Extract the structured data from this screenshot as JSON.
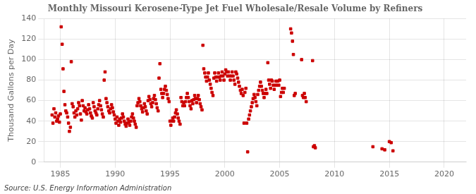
{
  "chart_data": {
    "type": "scatter",
    "title": "Monthly Missouri Kerosene-Type Jet Fuel Wholesale/Resale Volume by Refiners",
    "ylabel": "Thousand Gallons per Day",
    "annotations": [
      "Source: U.S. Energy Information Administration"
    ],
    "color": "#cc0000",
    "marker": "square",
    "grid": true,
    "xlim": [
      1983.5,
      2022
    ],
    "ylim": [
      0,
      140
    ],
    "xticks": [
      1985,
      1990,
      1995,
      2000,
      2005,
      2010,
      2015,
      2020
    ],
    "yticks": [
      0,
      20,
      40,
      60,
      80,
      100,
      120,
      140
    ],
    "x": [
      1984.25,
      1984.33,
      1984.42,
      1984.5,
      1984.58,
      1984.67,
      1984.75,
      1984.83,
      1984.92,
      1985.0,
      1985.08,
      1985.17,
      1985.25,
      1985.33,
      1985.42,
      1985.5,
      1985.58,
      1985.67,
      1985.75,
      1985.83,
      1985.92,
      1986.0,
      1986.08,
      1986.17,
      1986.25,
      1986.33,
      1986.42,
      1986.5,
      1986.58,
      1986.67,
      1986.75,
      1986.83,
      1986.92,
      1987.0,
      1987.08,
      1987.17,
      1987.25,
      1987.33,
      1987.42,
      1987.5,
      1987.58,
      1987.67,
      1987.75,
      1987.83,
      1987.92,
      1988.0,
      1988.08,
      1988.17,
      1988.25,
      1988.33,
      1988.42,
      1988.5,
      1988.58,
      1988.67,
      1988.75,
      1988.83,
      1988.92,
      1989.0,
      1989.08,
      1989.17,
      1989.25,
      1989.33,
      1989.42,
      1989.5,
      1989.58,
      1989.67,
      1989.75,
      1989.83,
      1989.92,
      1990.0,
      1990.08,
      1990.17,
      1990.25,
      1990.33,
      1990.42,
      1990.5,
      1990.58,
      1990.67,
      1990.75,
      1990.83,
      1990.92,
      1991.0,
      1991.08,
      1991.17,
      1991.25,
      1991.33,
      1991.42,
      1991.5,
      1991.58,
      1991.67,
      1991.75,
      1991.83,
      1991.92,
      1992.0,
      1992.08,
      1992.17,
      1992.25,
      1992.33,
      1992.42,
      1992.5,
      1992.58,
      1992.67,
      1992.75,
      1992.83,
      1992.92,
      1993.0,
      1993.08,
      1993.17,
      1993.25,
      1993.33,
      1993.42,
      1993.5,
      1993.58,
      1993.67,
      1993.75,
      1993.83,
      1993.92,
      1994.0,
      1994.08,
      1994.17,
      1994.25,
      1994.33,
      1994.42,
      1994.5,
      1994.58,
      1994.67,
      1994.75,
      1994.83,
      1994.92,
      1995.0,
      1995.08,
      1995.17,
      1995.25,
      1995.33,
      1995.42,
      1995.5,
      1995.58,
      1995.67,
      1995.75,
      1995.83,
      1995.92,
      1996.0,
      1996.08,
      1996.17,
      1996.25,
      1996.33,
      1996.42,
      1996.5,
      1996.58,
      1996.67,
      1996.75,
      1996.83,
      1996.92,
      1997.0,
      1997.08,
      1997.17,
      1997.25,
      1997.33,
      1997.42,
      1997.5,
      1997.58,
      1997.67,
      1997.75,
      1997.83,
      1997.92,
      1998.0,
      1998.08,
      1998.17,
      1998.25,
      1998.33,
      1998.42,
      1998.5,
      1998.58,
      1998.67,
      1998.75,
      1998.83,
      1998.92,
      1999.0,
      1999.08,
      1999.17,
      1999.25,
      1999.33,
      1999.42,
      1999.5,
      1999.58,
      1999.67,
      1999.75,
      1999.83,
      1999.92,
      2000.0,
      2000.08,
      2000.17,
      2000.25,
      2000.33,
      2000.42,
      2000.5,
      2000.58,
      2000.67,
      2000.75,
      2000.83,
      2000.92,
      2001.0,
      2001.08,
      2001.17,
      2001.25,
      2001.33,
      2001.42,
      2001.5,
      2001.58,
      2001.67,
      2001.75,
      2001.83,
      2001.92,
      2002.0,
      2002.08,
      2002.17,
      2002.25,
      2002.33,
      2002.42,
      2002.5,
      2002.58,
      2002.67,
      2002.75,
      2002.83,
      2002.92,
      2003.0,
      2003.08,
      2003.17,
      2003.25,
      2003.33,
      2003.42,
      2003.5,
      2003.58,
      2003.67,
      2003.75,
      2003.83,
      2003.92,
      2004.0,
      2004.08,
      2004.17,
      2004.25,
      2004.33,
      2004.42,
      2004.5,
      2004.58,
      2004.67,
      2004.75,
      2004.83,
      2004.92,
      2005.0,
      2005.08,
      2005.17,
      2005.25,
      2005.33,
      2005.42,
      2006.0,
      2006.08,
      2006.17,
      2006.25,
      2006.33,
      2006.42,
      2007.0,
      2007.08,
      2007.17,
      2007.25,
      2007.33,
      2007.42,
      2008.0,
      2008.08,
      2008.17,
      2008.25,
      2013.5,
      2014.33,
      2014.58,
      2015.0,
      2015.17,
      2015.33
    ],
    "values": [
      46,
      38,
      52,
      44,
      48,
      40,
      42,
      45,
      39,
      47,
      132,
      115,
      91,
      69,
      56,
      50,
      48,
      44,
      38,
      30,
      34,
      98,
      57,
      54,
      48,
      44,
      50,
      46,
      52,
      58,
      55,
      47,
      41,
      60,
      55,
      50,
      53,
      49,
      47,
      51,
      56,
      52,
      48,
      45,
      43,
      58,
      54,
      50,
      48,
      46,
      52,
      56,
      60,
      55,
      51,
      47,
      44,
      80,
      88,
      62,
      58,
      54,
      50,
      48,
      52,
      56,
      53,
      49,
      46,
      42,
      38,
      44,
      40,
      36,
      42,
      39,
      43,
      47,
      44,
      40,
      37,
      35,
      38,
      42,
      39,
      36,
      40,
      44,
      47,
      43,
      40,
      37,
      34,
      55,
      58,
      62,
      59,
      55,
      52,
      49,
      53,
      57,
      54,
      50,
      47,
      60,
      64,
      61,
      57,
      54,
      58,
      62,
      65,
      61,
      57,
      53,
      50,
      82,
      96,
      71,
      67,
      63,
      67,
      71,
      74,
      70,
      66,
      62,
      59,
      40,
      36,
      40,
      43,
      40,
      44,
      48,
      51,
      47,
      43,
      40,
      37,
      63,
      59,
      55,
      58,
      55,
      59,
      63,
      67,
      63,
      59,
      55,
      52,
      60,
      57,
      61,
      65,
      62,
      58,
      62,
      65,
      61,
      57,
      54,
      51,
      114,
      91,
      87,
      83,
      79,
      83,
      87,
      80,
      76,
      72,
      68,
      65,
      82,
      87,
      83,
      79,
      83,
      87,
      83,
      80,
      84,
      88,
      84,
      80,
      86,
      90,
      88,
      84,
      88,
      84,
      80,
      84,
      88,
      84,
      80,
      76,
      88,
      86,
      82,
      78,
      74,
      70,
      67,
      71,
      65,
      38,
      68,
      72,
      38,
      10,
      42,
      46,
      50,
      54,
      58,
      62,
      66,
      63,
      59,
      55,
      66,
      70,
      74,
      78,
      74,
      70,
      67,
      63,
      67,
      71,
      67,
      97,
      80,
      76,
      72,
      80,
      79,
      75,
      71,
      75,
      79,
      75,
      79,
      75,
      80,
      64,
      68,
      72,
      68,
      72,
      130,
      126,
      118,
      105,
      65,
      67,
      100,
      65,
      63,
      67,
      63,
      59,
      99,
      15,
      16,
      14,
      15,
      13,
      12,
      20,
      19,
      11
    ]
  }
}
